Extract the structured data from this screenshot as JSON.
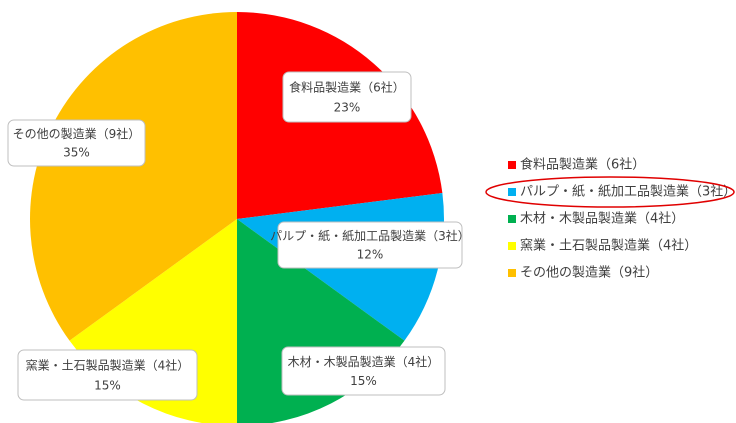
{
  "chart_data": {
    "type": "pie",
    "categories": [
      "食料品製造業（6社）",
      "パルプ・紙・紙加工品製造業（3社）",
      "木材・木製品製造業（4社）",
      "窯業・土石製品製造業（4社）",
      "その他の製造業（9社）"
    ],
    "values": [
      23,
      12,
      15,
      15,
      35
    ],
    "value_labels": [
      "23%",
      "12%",
      "15%",
      "15%",
      "35%"
    ],
    "colors": [
      "#ff0000",
      "#00b0f0",
      "#00b050",
      "#ffff00",
      "#ffc000"
    ],
    "legend": "right"
  }
}
